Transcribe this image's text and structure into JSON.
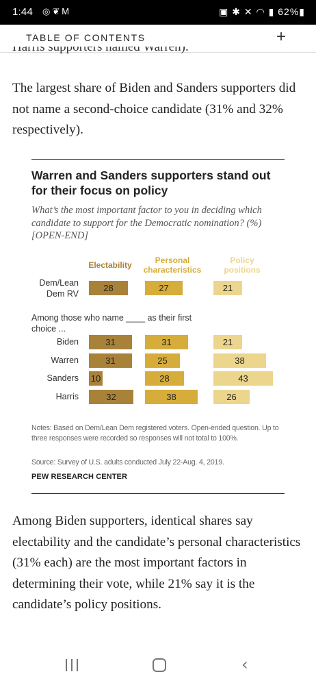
{
  "status_bar": {
    "time": "1:44",
    "left_icons": [
      "instagram-icon",
      "butterfly-icon",
      "gmail-icon"
    ],
    "right_icons": [
      "shield-icon",
      "bluetooth-icon",
      "mute-icon",
      "wifi-icon",
      "signal-icon"
    ],
    "battery": "62%"
  },
  "toc": {
    "title": "TABLE OF CONTENTS",
    "toggle": "+"
  },
  "article": {
    "cut_line": "Harris supporters named Warren).",
    "para1": "The largest share of Biden and Sanders supporters did not name a second-choice candidate (31% and 32% respectively).",
    "para2": "Among Biden supporters, identical shares say electability and the candidate’s personal characteristics (31% each) are the most important factors in determining their vote, while 21% say it is the candidate’s policy positions."
  },
  "chart": {
    "title": "Warren and Sanders supporters stand out for their focus on policy",
    "subtitle": "What’s the most important factor to you in deciding which candidate to support for the Democratic nomination? (%) [OPEN-END]",
    "among_label": "Among those who name ____ as their first choice ...",
    "notes": "Notes: Based on Dem/Lean Dem registered voters. Open-ended question. Up to three responses were recorded so responses will not total to 100%.",
    "source": "Source: Survey of U.S. adults conducted July 22-Aug. 4, 2019.",
    "brand": "PEW RESEARCH CENTER",
    "colors": {
      "electability": "#a9823a",
      "personal": "#d6ad3a",
      "policy": "#ecd68e"
    }
  },
  "chart_data": {
    "type": "bar",
    "title": "Warren and Sanders supporters stand out for their focus on policy",
    "categories": [
      "Dem/Lean Dem RV",
      "Biden",
      "Warren",
      "Sanders",
      "Harris"
    ],
    "series": [
      {
        "name": "Electability",
        "values": [
          28,
          31,
          31,
          10,
          32
        ]
      },
      {
        "name": "Personal characteristics",
        "values": [
          27,
          31,
          25,
          28,
          38
        ]
      },
      {
        "name": "Policy positions",
        "values": [
          21,
          21,
          38,
          43,
          26
        ]
      }
    ]
  }
}
